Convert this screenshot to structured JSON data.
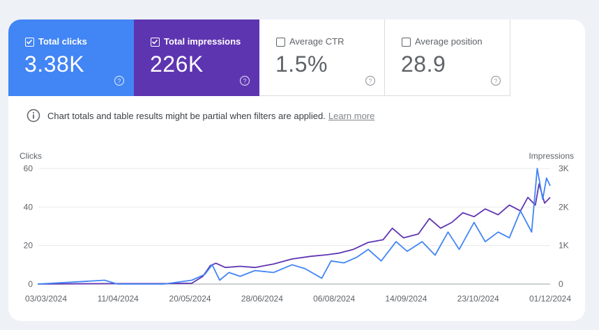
{
  "metrics": [
    {
      "label": "Total clicks",
      "value": "3.38K",
      "checked": true,
      "color": "#4285f4"
    },
    {
      "label": "Total impressions",
      "value": "226K",
      "checked": true,
      "color": "#5e35b1"
    },
    {
      "label": "Average CTR",
      "value": "1.5%",
      "checked": false
    },
    {
      "label": "Average position",
      "value": "28.9",
      "checked": false
    }
  ],
  "info": {
    "text": "Chart totals and table results might be partial when filters are applied.",
    "link": "Learn more"
  },
  "chart_data": {
    "type": "line",
    "left_axis_title": "Clicks",
    "right_axis_title": "Impressions",
    "left_ticks": [
      "0",
      "20",
      "40",
      "60"
    ],
    "right_ticks": [
      "0",
      "1K",
      "2K",
      "3K"
    ],
    "ylim_left": [
      0,
      60
    ],
    "ylim_right": [
      0,
      3000
    ],
    "x_ticks": [
      "03/03/2024",
      "11/04/2024",
      "20/05/2024",
      "28/06/2024",
      "06/08/2024",
      "14/09/2024",
      "23/10/2024",
      "01/12/2024"
    ],
    "xlim": [
      "2024-03-03",
      "2024-12-04"
    ],
    "grid": true,
    "series": [
      {
        "name": "Total impressions",
        "axis": "right",
        "color": "#5e35b1",
        "points": [
          [
            "2024-03-03",
            0
          ],
          [
            "2024-03-20",
            5
          ],
          [
            "2024-04-15",
            10
          ],
          [
            "2024-05-10",
            10
          ],
          [
            "2024-05-25",
            20
          ],
          [
            "2024-05-31",
            200
          ],
          [
            "2024-06-04",
            480
          ],
          [
            "2024-06-07",
            540
          ],
          [
            "2024-06-12",
            430
          ],
          [
            "2024-06-20",
            460
          ],
          [
            "2024-06-28",
            430
          ],
          [
            "2024-07-08",
            520
          ],
          [
            "2024-07-18",
            650
          ],
          [
            "2024-07-28",
            720
          ],
          [
            "2024-08-06",
            760
          ],
          [
            "2024-08-12",
            800
          ],
          [
            "2024-08-20",
            900
          ],
          [
            "2024-08-28",
            1080
          ],
          [
            "2024-09-05",
            1150
          ],
          [
            "2024-09-10",
            1450
          ],
          [
            "2024-09-16",
            1200
          ],
          [
            "2024-09-24",
            1300
          ],
          [
            "2024-09-30",
            1700
          ],
          [
            "2024-10-06",
            1450
          ],
          [
            "2024-10-12",
            1600
          ],
          [
            "2024-10-18",
            1850
          ],
          [
            "2024-10-24",
            1750
          ],
          [
            "2024-10-30",
            1950
          ],
          [
            "2024-11-06",
            1800
          ],
          [
            "2024-11-12",
            2050
          ],
          [
            "2024-11-18",
            1900
          ],
          [
            "2024-11-22",
            2250
          ],
          [
            "2024-11-26",
            2050
          ],
          [
            "2024-11-28",
            2600
          ],
          [
            "2024-12-01",
            2100
          ],
          [
            "2024-12-04",
            2250
          ]
        ]
      },
      {
        "name": "Total clicks",
        "axis": "left",
        "color": "#4285f4",
        "points": [
          [
            "2024-03-03",
            0
          ],
          [
            "2024-03-22",
            1
          ],
          [
            "2024-04-08",
            2
          ],
          [
            "2024-04-15",
            0
          ],
          [
            "2024-05-10",
            0
          ],
          [
            "2024-05-25",
            2
          ],
          [
            "2024-06-01",
            5
          ],
          [
            "2024-06-05",
            10
          ],
          [
            "2024-06-09",
            2
          ],
          [
            "2024-06-14",
            6
          ],
          [
            "2024-06-20",
            4
          ],
          [
            "2024-06-28",
            7
          ],
          [
            "2024-07-08",
            6
          ],
          [
            "2024-07-18",
            10
          ],
          [
            "2024-07-25",
            8
          ],
          [
            "2024-08-03",
            3
          ],
          [
            "2024-08-08",
            12
          ],
          [
            "2024-08-15",
            11
          ],
          [
            "2024-08-22",
            14
          ],
          [
            "2024-08-28",
            18
          ],
          [
            "2024-09-04",
            12
          ],
          [
            "2024-09-12",
            22
          ],
          [
            "2024-09-18",
            17
          ],
          [
            "2024-09-26",
            22
          ],
          [
            "2024-10-03",
            15
          ],
          [
            "2024-10-10",
            27
          ],
          [
            "2024-10-16",
            18
          ],
          [
            "2024-10-24",
            32
          ],
          [
            "2024-10-30",
            22
          ],
          [
            "2024-11-06",
            27
          ],
          [
            "2024-11-12",
            24
          ],
          [
            "2024-11-18",
            38
          ],
          [
            "2024-11-24",
            27
          ],
          [
            "2024-11-27",
            60
          ],
          [
            "2024-11-30",
            44
          ],
          [
            "2024-12-02",
            55
          ],
          [
            "2024-12-04",
            51
          ]
        ]
      }
    ]
  }
}
